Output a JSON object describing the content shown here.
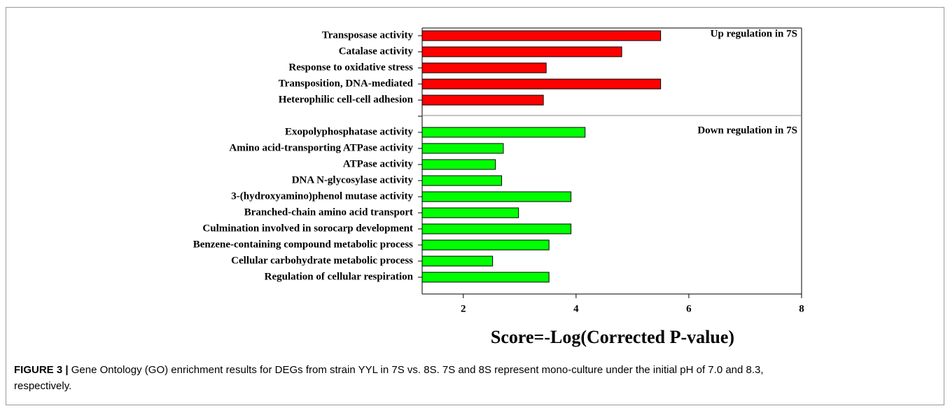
{
  "chart_data": {
    "type": "barh",
    "xlabel": "Score=-Log(Corrected P-value)",
    "categories": [
      "Transposase activity",
      "Catalase activity",
      "Response to oxidative stress",
      "Transposition, DNA-mediated",
      "Heterophilic cell-cell adhesion",
      null,
      "Exopolyphosphatase activity",
      "Amino acid-transporting ATPase activity",
      "ATPase activity",
      "DNA N-glycosylase activity",
      "3-(hydroxyamino)phenol mutase activity",
      "Branched-chain amino acid transport",
      "Culmination involved in sorocarp development",
      "Benzene-containing compound metabolic process",
      "Cellular carbohydrate metabolic process",
      "Regulation of cellular respiration"
    ],
    "series": [
      {
        "name": "Up regulation in 7S",
        "color": "#ff0000",
        "values": [
          5.5,
          4.81,
          3.47,
          5.5,
          3.42,
          null,
          null,
          null,
          null,
          null,
          null,
          null,
          null,
          null,
          null,
          null
        ]
      },
      {
        "name": "Down regulation in 7S",
        "color": "#00ff00",
        "values": [
          null,
          null,
          null,
          null,
          null,
          null,
          4.16,
          2.71,
          2.57,
          2.68,
          3.91,
          2.98,
          3.91,
          3.52,
          2.52,
          3.52
        ]
      }
    ],
    "xlim": [
      1.27,
      8
    ],
    "xticks": [
      2,
      4,
      6,
      8
    ]
  },
  "caption": {
    "label": "FIGURE 3 |",
    "text": "Gene Ontology (GO) enrichment results for DEGs from strain YYL in 7S vs. 8S. 7S and 8S represent mono-culture under the initial pH of 7.0 and 8.3,",
    "text2": "respectively."
  }
}
